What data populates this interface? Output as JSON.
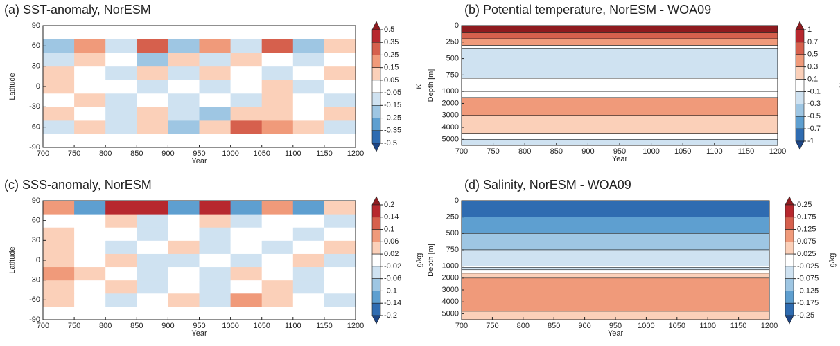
{
  "chart_data": [
    {
      "type": "heatmap",
      "title": "(a)  SST-anomaly, NorESM",
      "xlabel": "Year",
      "ylabel": "Latitude",
      "colorbar_label": "K",
      "xlim": [
        700,
        1200
      ],
      "xticks": [
        700,
        750,
        800,
        850,
        900,
        950,
        1000,
        1050,
        1100,
        1150,
        1200
      ],
      "ylim": [
        -90,
        90
      ],
      "yticks": [
        -90,
        -60,
        -30,
        0,
        30,
        60,
        90
      ],
      "levels": [
        0.5,
        0.35,
        0.25,
        0.15,
        0.05,
        -0.05,
        -0.15,
        -0.25,
        -0.35,
        -0.5
      ],
      "colors": [
        "#8e1b1f",
        "#b7282e",
        "#d6604d",
        "#f09a7a",
        "#fbd0b9",
        "#ffffff",
        "#cfe2f1",
        "#9ec6e3",
        "#5e9fd0",
        "#2f6cb1",
        "#1c4585"
      ],
      "z": [
        [
          null,
          null,
          null,
          null,
          null,
          null,
          null,
          null,
          null,
          null
        ],
        [
          -0.1,
          0.1,
          -0.1,
          0.1,
          -0.2,
          0.1,
          0.3,
          0.2,
          0.1,
          -0.1
        ],
        [
          0.1,
          0.0,
          -0.1,
          0.1,
          -0.1,
          -0.2,
          0.1,
          0.1,
          0.0,
          0.1
        ],
        [
          0.0,
          0.1,
          -0.1,
          0.0,
          -0.1,
          0.0,
          -0.1,
          0.1,
          0.0,
          -0.1
        ],
        [
          0.1,
          0.0,
          0.0,
          -0.1,
          0.0,
          -0.1,
          0.0,
          0.1,
          -0.1,
          0.0
        ],
        [
          0.1,
          0.0,
          -0.1,
          0.1,
          -0.1,
          0.1,
          0.0,
          -0.1,
          0.0,
          0.1
        ],
        [
          -0.1,
          0.1,
          0.0,
          -0.2,
          0.1,
          -0.1,
          0.1,
          0.0,
          -0.1,
          0.0
        ],
        [
          -0.2,
          0.2,
          -0.1,
          0.3,
          -0.2,
          0.2,
          -0.1,
          0.3,
          -0.2,
          0.1
        ],
        [
          null,
          null,
          null,
          null,
          null,
          null,
          null,
          null,
          null,
          null
        ]
      ]
    },
    {
      "type": "bands",
      "title": "(b)  Potential temperature, NorESM - WOA09",
      "xlabel": "Year",
      "ylabel": "Depth [m]",
      "colorbar_label": "K",
      "xlim": [
        700,
        1200
      ],
      "xticks": [
        700,
        750,
        800,
        850,
        900,
        950,
        1000,
        1050,
        1100,
        1150,
        1200
      ],
      "ylim": [
        0,
        5500
      ],
      "ybreak": 1000,
      "yticks": [
        0,
        250,
        500,
        750,
        1000,
        2000,
        3000,
        4000,
        5000
      ],
      "levels": [
        1,
        0.7,
        0.5,
        0.3,
        0.1,
        -0.1,
        -0.3,
        -0.5,
        -0.7,
        -1
      ],
      "colors": [
        "#8e1b1f",
        "#b7282e",
        "#d6604d",
        "#f09a7a",
        "#fbd0b9",
        "#ffffff",
        "#cfe2f1",
        "#9ec6e3",
        "#5e9fd0",
        "#2f6cb1",
        "#1c4585"
      ],
      "depths": [
        0,
        100,
        200,
        300,
        350,
        800,
        1000,
        1500,
        3000,
        4500,
        5000,
        5500
      ],
      "values": [
        1.2,
        0.6,
        0.4,
        0.05,
        -0.2,
        0.0,
        0.05,
        0.4,
        0.2,
        0.0,
        -0.2
      ]
    },
    {
      "type": "heatmap",
      "title": "(c)  SSS-anomaly, NorESM",
      "xlabel": "Year",
      "ylabel": "Latitude",
      "colorbar_label": "g/kg",
      "xlim": [
        700,
        1200
      ],
      "xticks": [
        700,
        750,
        800,
        850,
        900,
        950,
        1000,
        1050,
        1100,
        1150,
        1200
      ],
      "ylim": [
        -90,
        90
      ],
      "yticks": [
        -90,
        -60,
        -30,
        0,
        30,
        60,
        90
      ],
      "levels": [
        0.2,
        0.14,
        0.1,
        0.06,
        0.02,
        -0.02,
        -0.06,
        -0.1,
        -0.14,
        -0.2
      ],
      "colors": [
        "#8e1b1f",
        "#b7282e",
        "#d6604d",
        "#f09a7a",
        "#fbd0b9",
        "#ffffff",
        "#cfe2f1",
        "#9ec6e3",
        "#5e9fd0",
        "#2f6cb1",
        "#1c4585"
      ],
      "z": [
        [
          null,
          null,
          null,
          null,
          null,
          null,
          null,
          null,
          null,
          null
        ],
        [
          0.03,
          0.0,
          -0.03,
          0.0,
          0.03,
          -0.03,
          0.07,
          0.03,
          0.0,
          -0.03
        ],
        [
          0.04,
          0.0,
          0.03,
          -0.03,
          0.0,
          -0.03,
          0.0,
          0.03,
          -0.03,
          0.0
        ],
        [
          0.07,
          0.03,
          0.0,
          -0.03,
          0.0,
          -0.04,
          0.03,
          0.0,
          -0.03,
          0.0
        ],
        [
          0.03,
          0.0,
          0.03,
          -0.03,
          -0.04,
          0.0,
          -0.03,
          0.0,
          0.03,
          -0.03
        ],
        [
          0.03,
          0.0,
          -0.03,
          0.0,
          0.03,
          -0.03,
          0.0,
          -0.03,
          0.0,
          0.03
        ],
        [
          0.03,
          0.0,
          0.0,
          -0.04,
          0.0,
          -0.03,
          0.0,
          0.0,
          -0.03,
          0.0
        ],
        [
          0.0,
          0.0,
          0.03,
          -0.03,
          0.0,
          0.03,
          -0.04,
          0.0,
          0.0,
          -0.03
        ],
        [
          0.1,
          -0.1,
          0.15,
          0.2,
          -0.1,
          0.2,
          -0.1,
          0.1,
          -0.1,
          0.05
        ]
      ]
    },
    {
      "type": "bands",
      "title": "(d)  Salinity, NorESM - WOA09",
      "xlabel": "Year",
      "ylabel": "Depth [m]",
      "colorbar_label": "g/kg",
      "xlim": [
        700,
        1200
      ],
      "xticks": [
        700,
        750,
        800,
        850,
        900,
        950,
        1000,
        1050,
        1100,
        1150,
        1200
      ],
      "ylim": [
        0,
        5500
      ],
      "ybreak": 1000,
      "yticks": [
        0,
        250,
        500,
        750,
        1000,
        2000,
        3000,
        4000,
        5000
      ],
      "levels": [
        0.25,
        0.175,
        0.125,
        0.075,
        0.025,
        -0.025,
        -0.075,
        -0.125,
        -0.175,
        -0.25
      ],
      "colors": [
        "#8e1b1f",
        "#b7282e",
        "#d6604d",
        "#f09a7a",
        "#fbd0b9",
        "#ffffff",
        "#cfe2f1",
        "#9ec6e3",
        "#5e9fd0",
        "#2f6cb1",
        "#1c4585"
      ],
      "depths": [
        0,
        250,
        500,
        750,
        1000,
        1100,
        1300,
        1600,
        2000,
        4800,
        5500
      ],
      "values": [
        -0.2,
        -0.15,
        -0.1,
        -0.05,
        0.0,
        -0.03,
        0.0,
        0.05,
        0.1,
        0.05
      ]
    }
  ]
}
